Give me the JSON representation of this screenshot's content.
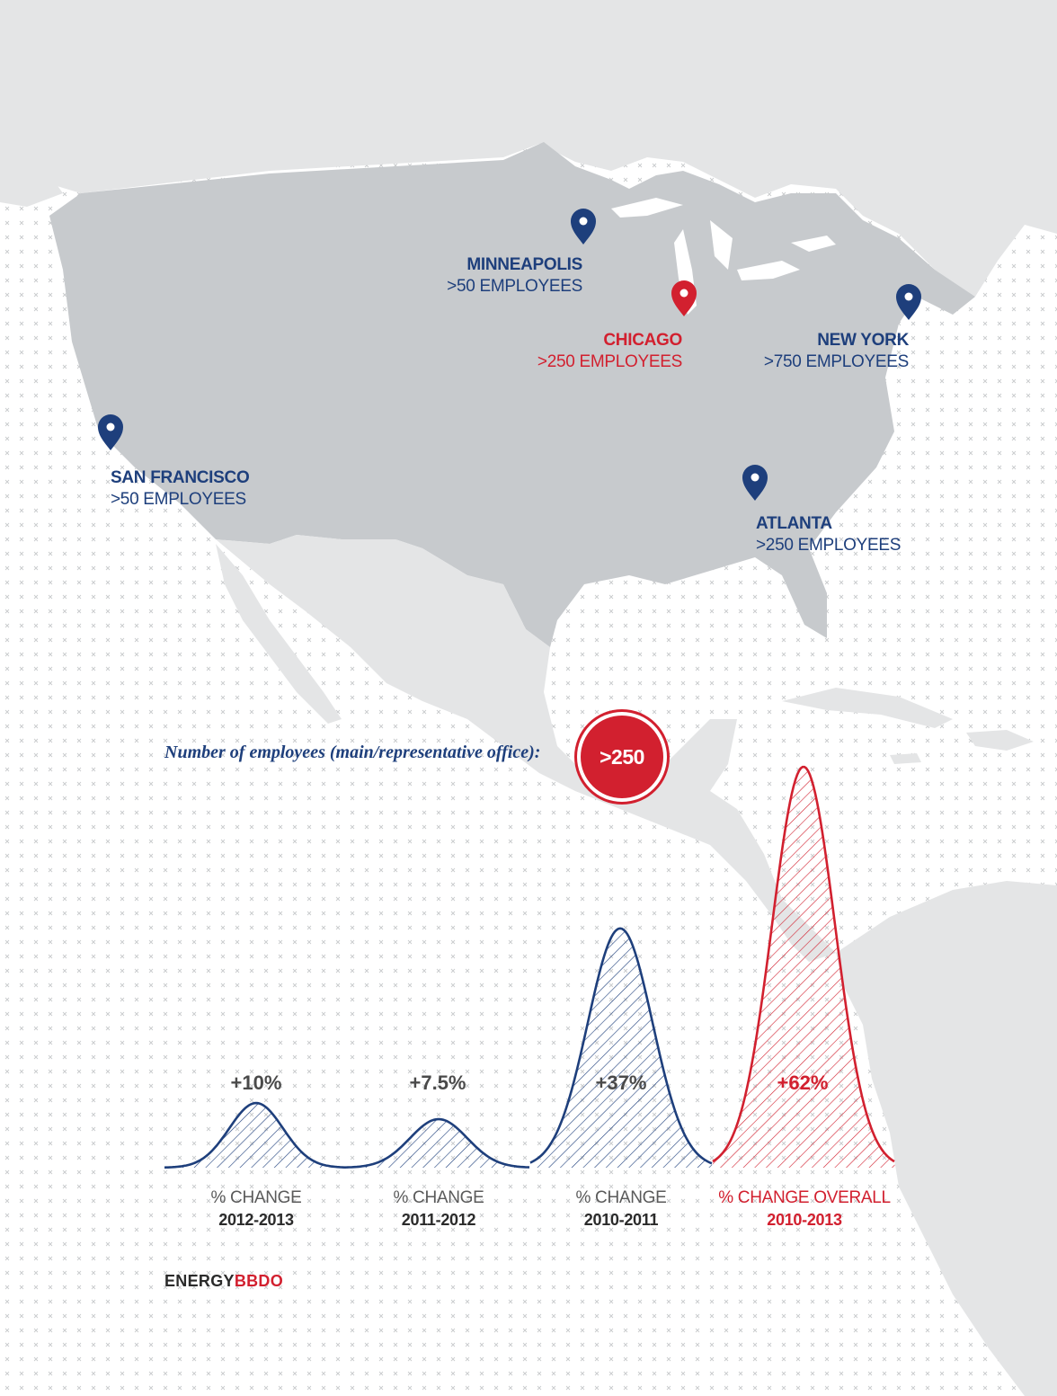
{
  "colors": {
    "navy": "#1e3f7c",
    "red": "#d2202f",
    "land_us": "#c7cacd",
    "land_other": "#e4e5e6",
    "grid_mark": "#c4c6c8",
    "text_dark": "#2b2b2b",
    "text_gray": "#5a5a5a"
  },
  "map": {
    "pins": [
      {
        "name": "MINNEAPOLIS",
        "employees": ">50 EMPLOYEES",
        "color": "navy",
        "icon": "map-pin-icon"
      },
      {
        "name": "CHICAGO",
        "employees": ">250 EMPLOYEES",
        "color": "red",
        "icon": "map-pin-icon"
      },
      {
        "name": "NEW YORK",
        "employees": ">750 EMPLOYEES",
        "color": "navy",
        "icon": "map-pin-icon"
      },
      {
        "name": "SAN FRANCISCO",
        "employees": ">50 EMPLOYEES",
        "color": "navy",
        "icon": "map-pin-icon"
      },
      {
        "name": "ATLANTA",
        "employees": ">250 EMPLOYEES",
        "color": "navy",
        "icon": "map-pin-icon"
      }
    ]
  },
  "legend": {
    "text": "Number of employees (main/representative office):",
    "badge": ">250"
  },
  "chart_data": {
    "type": "area",
    "series": [
      {
        "label": "+10%",
        "value": 10,
        "caption_line1": "% CHANGE",
        "caption_line2": "2012-2013",
        "color": "navy"
      },
      {
        "label": "+7.5%",
        "value": 7.5,
        "caption_line1": "% CHANGE",
        "caption_line2": "2011-2012",
        "color": "navy"
      },
      {
        "label": "+37%",
        "value": 37,
        "caption_line1": "% CHANGE",
        "caption_line2": "2010-2011",
        "color": "navy"
      },
      {
        "label": "+62%",
        "value": 62,
        "caption_line1": "% CHANGE OVERALL",
        "caption_line2": "2010-2013",
        "color": "red"
      }
    ]
  },
  "footer": {
    "logo_part1": "ENERGY",
    "logo_part2": "BBDO"
  }
}
